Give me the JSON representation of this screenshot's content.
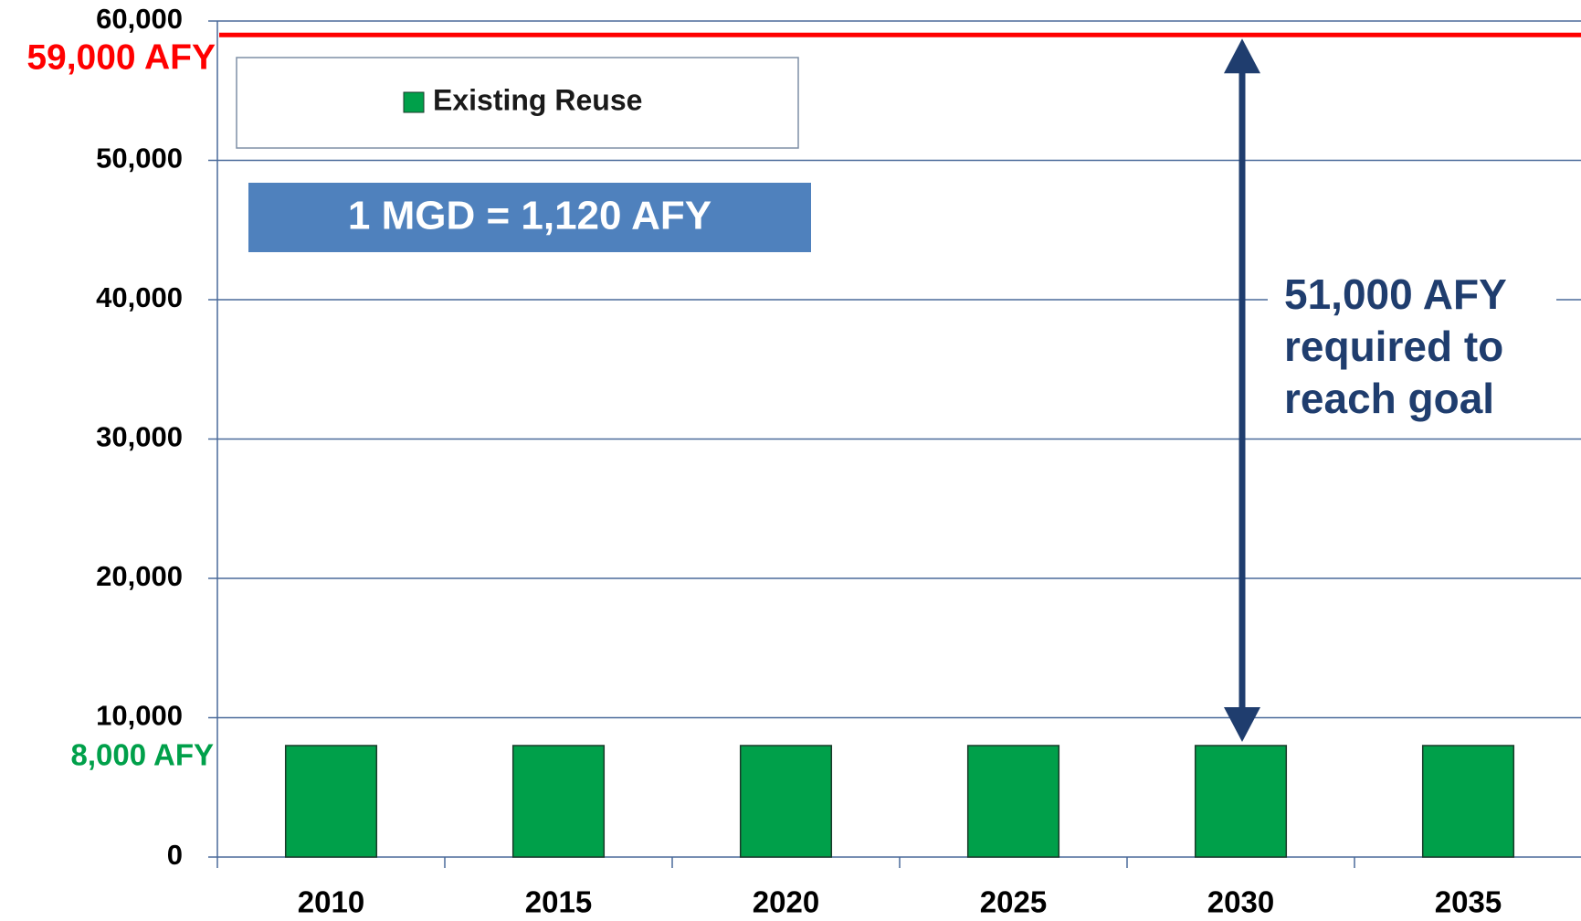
{
  "chart_data": {
    "type": "bar",
    "categories": [
      "2010",
      "2015",
      "2020",
      "2025",
      "2030",
      "2035"
    ],
    "series": [
      {
        "name": "Existing Reuse",
        "color": "#00a04a",
        "values": [
          8000,
          8000,
          8000,
          8000,
          8000,
          8000
        ]
      }
    ],
    "ylim": [
      0,
      60000
    ],
    "yticks": [
      0,
      {
        "value": 10000,
        "label": "10,000"
      },
      {
        "value": 20000,
        "label": "20,000"
      },
      {
        "value": 30000,
        "label": "30,000"
      },
      {
        "value": 40000,
        "label": "40,000"
      },
      {
        "value": 50000,
        "label": "50,000"
      },
      {
        "value": 60000,
        "label": "60,000"
      }
    ],
    "grid": true,
    "goal": {
      "value": 59000,
      "label": "59,000 AFY",
      "color": "#ff0000"
    },
    "base": {
      "value": 8000,
      "label": "8,000 AFY",
      "color": "#00a04a"
    },
    "conversion_note": "1 MGD = 1,120 AFY",
    "gap_note": [
      "51,000 AFY",
      "required to",
      "reach goal"
    ]
  }
}
